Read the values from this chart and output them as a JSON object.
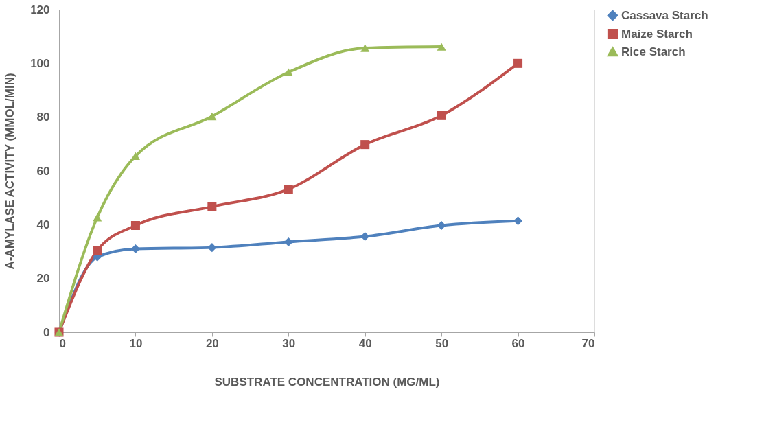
{
  "chart_data": {
    "type": "line",
    "xlabel": "SUBSTRATE CONCENTRATION (MG/ML)",
    "ylabel": "A-AMYLASE ACTIVITY (MMOL/MIN)",
    "xlim": [
      0,
      70
    ],
    "xticks": [
      0,
      10,
      20,
      30,
      40,
      50,
      60,
      70
    ],
    "ylim": [
      0,
      120
    ],
    "yticks": [
      0,
      20,
      40,
      60,
      80,
      100,
      120
    ],
    "grid": false,
    "legend": "right",
    "series": [
      {
        "name": "Cassava Starch",
        "color": "#4f81bd",
        "marker": "diamond",
        "x": [
          0,
          5,
          10,
          20,
          30,
          40,
          50,
          60
        ],
        "values": [
          0,
          28,
          31,
          31.5,
          33.6,
          35.6,
          39.7,
          41.4
        ]
      },
      {
        "name": "Maize Starch",
        "color": "#c0504d",
        "marker": "square",
        "x": [
          0,
          5,
          10,
          20,
          30,
          40,
          50,
          60
        ],
        "values": [
          0,
          30.4,
          39.7,
          46.7,
          53.2,
          69.8,
          80.6,
          100
        ]
      },
      {
        "name": "Rice Starch",
        "color": "#9bbb59",
        "marker": "triangle",
        "x": [
          0,
          5,
          10,
          20,
          30,
          40,
          50
        ],
        "values": [
          0,
          42.7,
          65.5,
          80.3,
          96.7,
          105.7,
          106.2
        ]
      }
    ]
  }
}
